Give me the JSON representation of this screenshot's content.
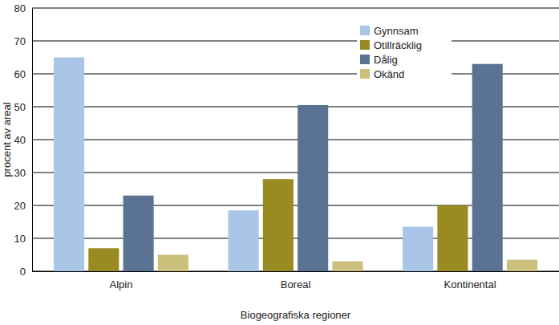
{
  "chart_data": {
    "type": "bar",
    "x_label": "Biogeografiska regioner",
    "y_label": "procent av areal",
    "categories": [
      "Alpin",
      "Boreal",
      "Kontinental"
    ],
    "series": [
      {
        "name": "Gynnsam",
        "color": "#a9c6e8",
        "values": [
          65,
          18.5,
          13.5
        ]
      },
      {
        "name": "Otillräcklig",
        "color": "#9a8a22",
        "values": [
          7,
          28,
          20
        ]
      },
      {
        "name": "Dålig",
        "color": "#5b7393",
        "values": [
          23,
          50.5,
          63
        ]
      },
      {
        "name": "Okänd",
        "color": "#cbbf7c",
        "values": [
          5,
          3,
          3.5
        ]
      }
    ],
    "ylim": [
      0,
      80
    ],
    "yticks": [
      0,
      10,
      20,
      30,
      40,
      50,
      60,
      70,
      80
    ],
    "grid": true,
    "legend": "upper right"
  }
}
